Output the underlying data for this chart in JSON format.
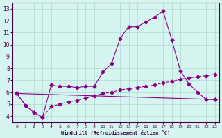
{
  "xlabel": "Windchill (Refroidissement éolien,°C)",
  "background_color": "#d6f5f0",
  "grid_color": "#b0d8d0",
  "line_color": "#880088",
  "xlim": [
    -0.5,
    23.5
  ],
  "ylim": [
    3.5,
    13.5
  ],
  "xticks": [
    0,
    1,
    2,
    3,
    4,
    5,
    6,
    7,
    8,
    9,
    10,
    11,
    12,
    13,
    14,
    15,
    16,
    17,
    18,
    19,
    20,
    21,
    22,
    23
  ],
  "yticks": [
    4,
    5,
    6,
    7,
    8,
    9,
    10,
    11,
    12,
    13
  ],
  "line1_x": [
    0,
    1,
    2,
    3,
    4,
    5,
    6,
    7,
    8,
    9,
    10,
    11,
    12,
    13,
    14,
    15,
    16,
    17,
    18,
    19,
    20,
    21,
    22,
    23
  ],
  "line1_y": [
    5.9,
    4.9,
    4.3,
    3.9,
    6.6,
    6.5,
    6.5,
    6.4,
    6.5,
    6.5,
    7.7,
    8.4,
    10.5,
    11.5,
    11.5,
    11.9,
    12.3,
    12.8,
    10.4,
    7.8,
    6.7,
    6.0,
    5.4,
    5.4
  ],
  "line2_x": [
    0,
    1,
    2,
    3,
    4,
    5,
    6,
    7,
    8,
    9,
    10,
    11,
    12,
    13,
    14,
    15,
    16,
    17,
    18,
    19,
    20,
    21,
    22,
    23
  ],
  "line2_y": [
    5.9,
    4.9,
    4.3,
    3.9,
    4.8,
    5.0,
    5.2,
    5.3,
    5.5,
    5.7,
    5.9,
    6.0,
    6.2,
    6.3,
    6.4,
    6.5,
    6.6,
    6.8,
    6.9,
    7.1,
    7.2,
    7.3,
    7.4,
    7.5
  ],
  "line3_x": [
    0,
    23
  ],
  "line3_y": [
    5.9,
    5.4
  ]
}
